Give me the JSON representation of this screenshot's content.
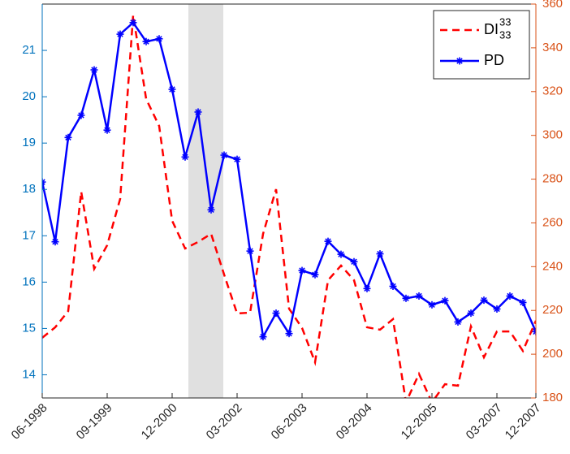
{
  "chart_data": {
    "type": "line",
    "categories": [
      "06-1998",
      null,
      null,
      null,
      null,
      "09-1999",
      null,
      null,
      null,
      null,
      "12-2000",
      null,
      null,
      null,
      null,
      "03-2002",
      null,
      null,
      null,
      null,
      "06-2003",
      null,
      null,
      null,
      null,
      "09-2004",
      null,
      null,
      null,
      null,
      "12-2005",
      null,
      null,
      null,
      null,
      "03-2007",
      null,
      null,
      "12-2007"
    ],
    "xticks": [
      0,
      5,
      10,
      15,
      20,
      25,
      30,
      35,
      38
    ],
    "xlim": [
      0,
      38
    ],
    "ylim": [
      13.5,
      22
    ],
    "yticks": [
      14,
      15,
      16,
      17,
      18,
      19,
      20,
      21
    ],
    "y_color": "#0072bd",
    "y2lim": [
      180,
      360
    ],
    "y2ticks": [
      180,
      200,
      220,
      240,
      260,
      280,
      300,
      320,
      340,
      360
    ],
    "y2_color": "#d95319",
    "shaded_x": [
      11.25,
      13.94
    ],
    "legend": "upper right",
    "series": [
      {
        "name": "DI",
        "name_sup": "33",
        "name_sub": "33",
        "color": "#ff0000",
        "style": "dashed",
        "axis": "y2",
        "values": [
          207.5,
          212.3,
          219.7,
          274.3,
          239,
          249.8,
          271,
          355,
          316.6,
          304.3,
          261,
          248.3,
          251.3,
          255,
          236.4,
          218.6,
          219,
          255,
          275.4,
          220.8,
          212,
          196.3,
          233.8,
          240.5,
          233.8,
          212.3,
          211.2,
          216,
          178,
          191,
          178,
          186.3,
          185.6,
          212.7,
          198.6,
          210.4,
          210.4,
          201.5,
          215.3
        ]
      },
      {
        "name": "PD",
        "color": "#0000ff",
        "style": "solid",
        "marker": "asterisk",
        "values": [
          18.16,
          16.87,
          19.12,
          19.6,
          20.58,
          19.28,
          21.35,
          21.6,
          21.19,
          21.25,
          20.16,
          18.7,
          19.67,
          17.56,
          18.74,
          18.65,
          16.67,
          14.82,
          15.33,
          14.89,
          16.25,
          16.16,
          16.88,
          16.6,
          16.44,
          15.86,
          16.61,
          15.91,
          15.65,
          15.7,
          15.51,
          15.6,
          15.14,
          15.33,
          15.61,
          15.42,
          15.7,
          15.56,
          14.93
        ]
      }
    ]
  }
}
